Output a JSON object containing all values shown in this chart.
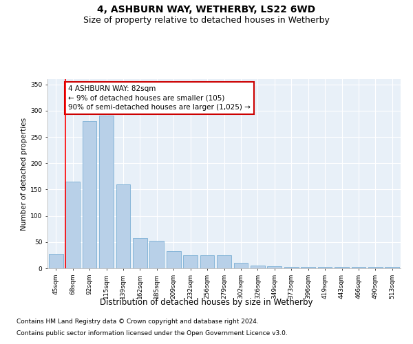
{
  "title1": "4, ASHBURN WAY, WETHERBY, LS22 6WD",
  "title2": "Size of property relative to detached houses in Wetherby",
  "xlabel": "Distribution of detached houses by size in Wetherby",
  "ylabel": "Number of detached properties",
  "categories": [
    "45sqm",
    "68sqm",
    "92sqm",
    "115sqm",
    "139sqm",
    "162sqm",
    "185sqm",
    "209sqm",
    "232sqm",
    "256sqm",
    "279sqm",
    "302sqm",
    "326sqm",
    "349sqm",
    "373sqm",
    "396sqm",
    "419sqm",
    "443sqm",
    "466sqm",
    "490sqm",
    "513sqm"
  ],
  "values": [
    28,
    165,
    280,
    290,
    160,
    58,
    52,
    33,
    25,
    25,
    25,
    10,
    5,
    4,
    2,
    2,
    2,
    3,
    2,
    2,
    2
  ],
  "bar_color": "#b8d0e8",
  "bar_edge_color": "#7aafd4",
  "background_color": "#e8f0f8",
  "grid_color": "#ffffff",
  "red_line_index": 1,
  "annotation_text": "4 ASHBURN WAY: 82sqm\n← 9% of detached houses are smaller (105)\n90% of semi-detached houses are larger (1,025) →",
  "annotation_box_color": "#ffffff",
  "annotation_box_edge": "#cc0000",
  "ylim": [
    0,
    360
  ],
  "yticks": [
    0,
    50,
    100,
    150,
    200,
    250,
    300,
    350
  ],
  "footnote1": "Contains HM Land Registry data © Crown copyright and database right 2024.",
  "footnote2": "Contains public sector information licensed under the Open Government Licence v3.0.",
  "title1_fontsize": 10,
  "title2_fontsize": 9,
  "xlabel_fontsize": 8.5,
  "ylabel_fontsize": 7.5,
  "tick_fontsize": 6.5,
  "annot_fontsize": 7.5,
  "footnote_fontsize": 6.5
}
